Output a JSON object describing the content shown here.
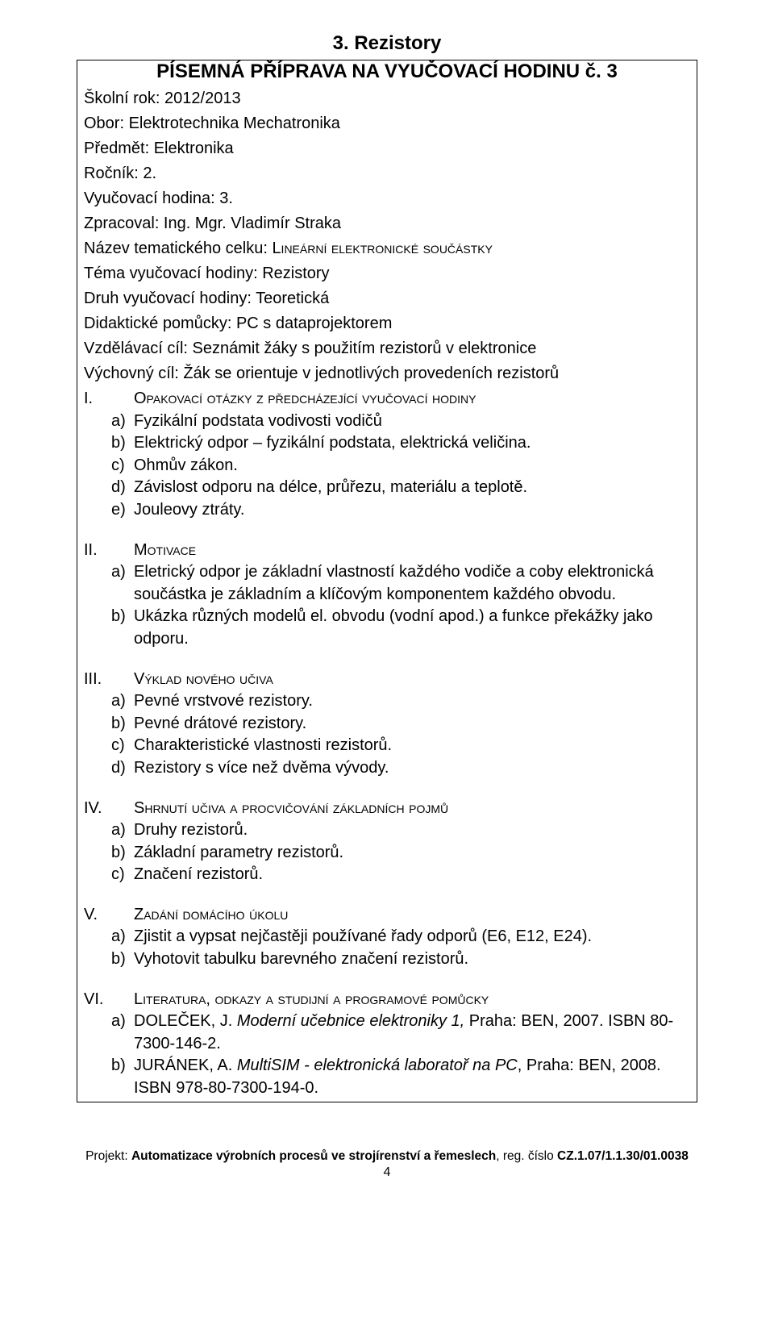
{
  "section_title": "3. Rezistory",
  "doc_title": "PÍSEMNÁ PŘÍPRAVA NA VYUČOVACÍ HODINU č. 3",
  "header_rows": [
    "Školní rok: 2012/2013",
    "Obor: Elektrotechnika Mechatronika",
    "Předmět: Elektronika",
    "Ročník: 2.",
    "Vyučovací hodina: 3.",
    "Zpracoval: Ing. Mgr. Vladimír Straka",
    "Téma vyučovací hodiny: Rezistory",
    "Druh vyučovací hodiny: Teoretická",
    "Didaktické pomůcky: PC s dataprojektorem",
    "Vzdělávací cíl: Seznámit žáky s použitím rezistorů v elektronice",
    "Výchovný cíl: Žák se orientuje v jednotlivých provedeních rezistorů"
  ],
  "nazev_label": "Název tematického celku: ",
  "nazev_value": "Lineární elektronické součástky",
  "sections": [
    {
      "rn": "I.",
      "title": "Opakovací otázky z předcházející vyučovací hodiny",
      "items": [
        {
          "l": "a)",
          "t": "Fyzikální podstata vodivosti vodičů"
        },
        {
          "l": "b)",
          "t": "Elektrický odpor – fyzikální podstata, elektrická veličina."
        },
        {
          "l": "c)",
          "t": "Ohmův zákon."
        },
        {
          "l": "d)",
          "t": "Závislost odporu na délce, průřezu, materiálu a teplotě."
        },
        {
          "l": "e)",
          "t": "Jouleovy ztráty."
        }
      ]
    },
    {
      "rn": "II.",
      "title": "Motivace",
      "items": [
        {
          "l": "a)",
          "t": "Eletrický odpor je základní vlastností každého vodiče a coby elektronická součástka je základním a klíčovým komponentem každého obvodu."
        },
        {
          "l": "b)",
          "t": "Ukázka různých modelů el. obvodu (vodní apod.) a funkce překážky jako odporu."
        }
      ]
    },
    {
      "rn": "III.",
      "title": "Výklad nového učiva",
      "items": [
        {
          "l": "a)",
          "t": "Pevné vrstvové rezistory."
        },
        {
          "l": "b)",
          "t": "Pevné drátové rezistory."
        },
        {
          "l": "c)",
          "t": "Charakteristické vlastnosti rezistorů."
        },
        {
          "l": "d)",
          "t": "Rezistory s více než dvěma vývody."
        }
      ]
    },
    {
      "rn": "IV.",
      "title": "Shrnutí učiva a procvičování základních pojmů",
      "items": [
        {
          "l": "a)",
          "t": "Druhy rezistorů."
        },
        {
          "l": "b)",
          "t": "Základní parametry rezistorů."
        },
        {
          "l": "c)",
          "t": "Značení rezistorů."
        }
      ]
    },
    {
      "rn": "V.",
      "title": "Zadání domácího úkolu",
      "items": [
        {
          "l": "a)",
          "t": "Zjistit a vypsat nejčastěji používané řady odporů (E6, E12, E24)."
        },
        {
          "l": "b)",
          "t": "Vyhotovit tabulku barevného značení rezistorů."
        }
      ]
    }
  ],
  "lit": {
    "rn": "VI.",
    "title": "Literatura, odkazy a studijní a programové pomůcky",
    "items": [
      {
        "l": "a)",
        "pre": "DOLEČEK, J. ",
        "it": "Moderní učebnice elektroniky 1, ",
        "post": "Praha: BEN, 2007. ISBN 80-7300-146-2."
      },
      {
        "l": "b)",
        "pre": "JURÁNEK, A. ",
        "it": "MultiSIM - elektronická laboratoř na PC",
        "post": ", Praha: BEN, 2008. ISBN 978-80-7300-194-0."
      }
    ]
  },
  "footer": {
    "prefix": "Projekt: ",
    "bold": "Automatizace výrobních procesů ve strojírenství a řemeslech",
    "mid": ", reg. číslo ",
    "code": "CZ.1.07/1.1.30/01.0038"
  },
  "page_number": "4"
}
